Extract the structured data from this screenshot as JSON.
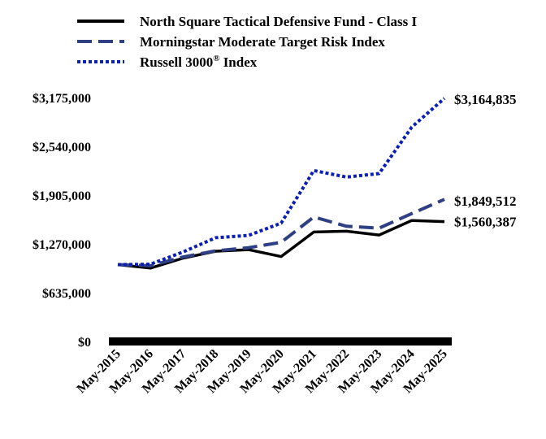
{
  "chart_data": {
    "type": "line",
    "categories": [
      "May-2015",
      "May-2016",
      "May-2017",
      "May-2018",
      "May-2019",
      "May-2020",
      "May-2021",
      "May-2022",
      "May-2023",
      "May-2024",
      "May-2025"
    ],
    "series": [
      {
        "key": "fund",
        "name": "North Square Tactical Defensive Fund - Class I",
        "color": "#000000",
        "values": [
          1000000,
          955000,
          1085000,
          1175000,
          1195000,
          1105000,
          1425000,
          1435000,
          1385000,
          1575000,
          1560387
        ],
        "end_label": "$1,560,387"
      },
      {
        "key": "morningstar",
        "name": "Morningstar Moderate Target Risk Index",
        "color": "#2f3f83",
        "values": [
          1000000,
          985000,
          1100000,
          1180000,
          1220000,
          1290000,
          1620000,
          1500000,
          1475000,
          1665000,
          1849512
        ],
        "end_label": "$1,849,512"
      },
      {
        "key": "russell",
        "name": "Russell 3000",
        "name_sup": "®",
        "name_suffix": " Index",
        "color": "#0b1fb5",
        "values": [
          1000000,
          1005000,
          1165000,
          1350000,
          1380000,
          1540000,
          2225000,
          2140000,
          2185000,
          2790000,
          3164835
        ],
        "end_label": "$3,164,835"
      }
    ],
    "ylim": [
      0,
      3175000
    ],
    "yticks": [
      {
        "value": 0,
        "label": "$0"
      },
      {
        "value": 635000,
        "label": "$635,000"
      },
      {
        "value": 1270000,
        "label": "$1,270,000"
      },
      {
        "value": 1905000,
        "label": "$1,905,000"
      },
      {
        "value": 2540000,
        "label": "$2,540,000"
      },
      {
        "value": 3175000,
        "label": "$3,175,000"
      }
    ],
    "title": "",
    "xlabel": "",
    "ylabel": "",
    "grid": false,
    "legend": "top"
  }
}
